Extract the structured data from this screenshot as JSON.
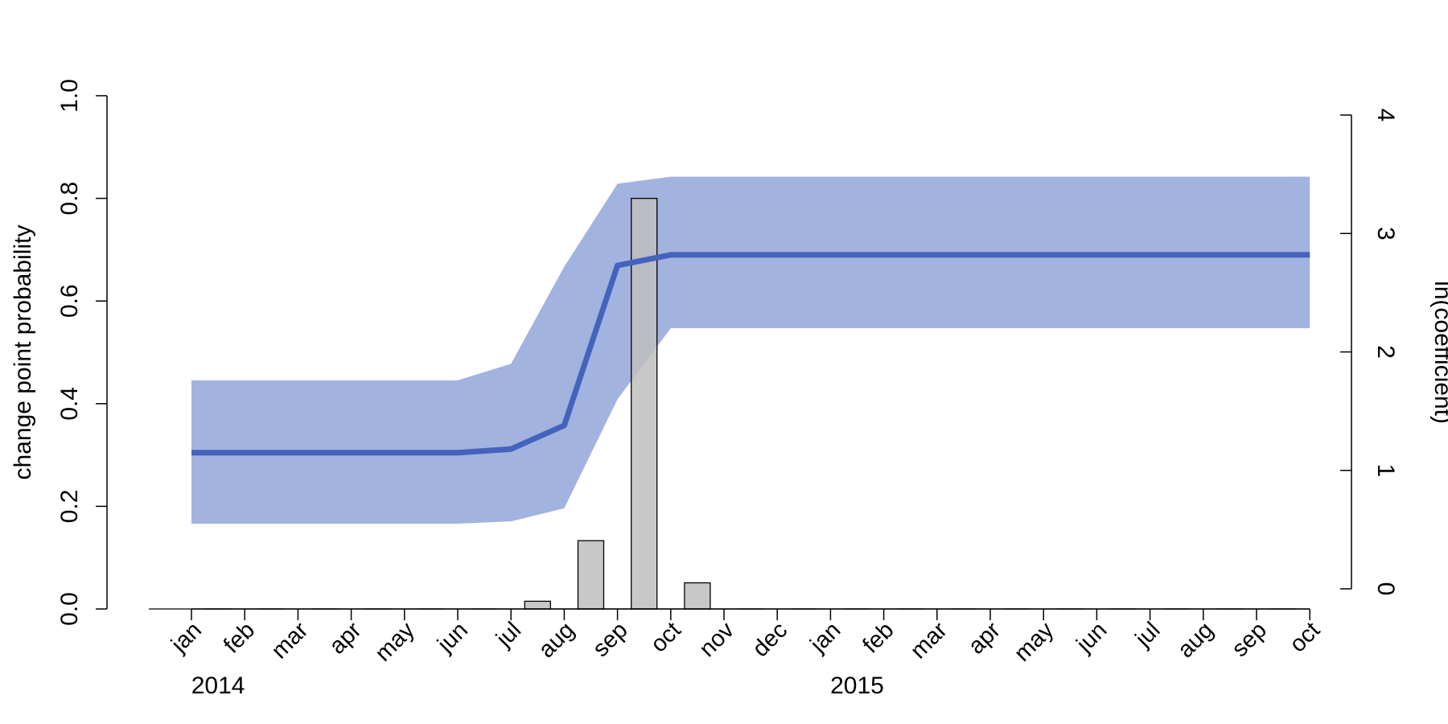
{
  "chart_data": {
    "type": "bar+line",
    "title": "",
    "left_axis": {
      "label": "change point probability",
      "ylim": [
        0,
        1
      ],
      "ticks": [
        0,
        0.2,
        0.4,
        0.6,
        0.8,
        1
      ],
      "tick_labels": [
        "0.0",
        "0.2",
        "0.4",
        "0.6",
        "0.8",
        "1.0"
      ]
    },
    "right_axis": {
      "label": "ln(coefficient)",
      "ylim": [
        0,
        4
      ],
      "ticks": [
        0,
        1,
        2,
        3,
        4
      ],
      "tick_labels": [
        "0",
        "1",
        "2",
        "3",
        "4"
      ]
    },
    "x_labels": [
      "jan",
      "feb",
      "mar",
      "apr",
      "may",
      "jun",
      "jul",
      "aug",
      "sep",
      "oct",
      "nov",
      "dec",
      "jan",
      "feb",
      "mar",
      "apr",
      "may",
      "jun",
      "jul",
      "aug",
      "sep",
      "oct"
    ],
    "year_labels": [
      {
        "label": "2014",
        "month_index": 0.5
      },
      {
        "label": "2015",
        "month_index": 12.5
      }
    ],
    "bars": {
      "name": "change point probability",
      "values": [
        0,
        0,
        0,
        0,
        0,
        0,
        0.015,
        0.133,
        0.8,
        0.051,
        0,
        0,
        0,
        0,
        0,
        0,
        0,
        0,
        0,
        0,
        0
      ],
      "color": "#bebebe",
      "positions_note": "bars centered between monthly ticks"
    },
    "series": [
      {
        "name": "ln(coefficient)",
        "x": [
          0,
          5,
          6,
          7,
          8,
          9,
          21
        ],
        "values": [
          1.15,
          1.15,
          1.18,
          1.38,
          2.73,
          2.82,
          2.82
        ],
        "color": "#4463bd"
      }
    ],
    "band": {
      "x": [
        0,
        5,
        6,
        7,
        8,
        9,
        21
      ],
      "lower": [
        0.55,
        0.55,
        0.57,
        0.68,
        1.6,
        2.2,
        2.2
      ],
      "upper": [
        1.76,
        1.76,
        1.9,
        2.72,
        3.42,
        3.48,
        3.48
      ],
      "color": "#a2b3df"
    },
    "grid": false,
    "legend": "none"
  }
}
